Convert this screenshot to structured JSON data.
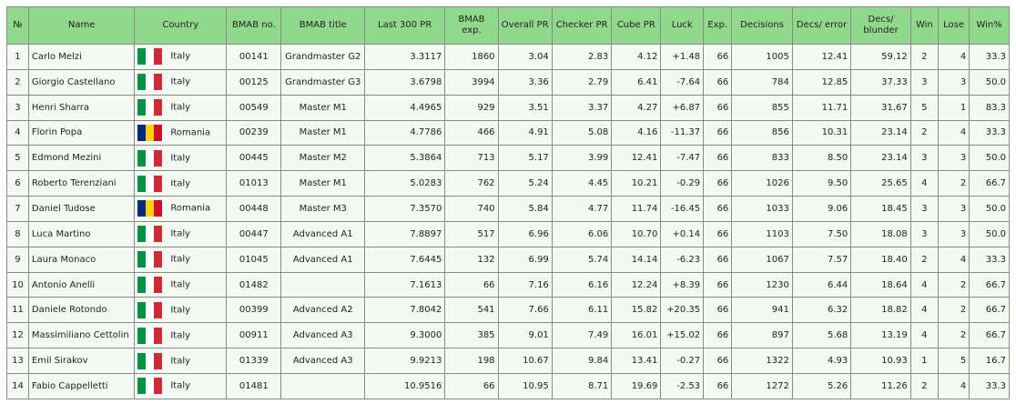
{
  "table": {
    "columns": [
      "№",
      "Name",
      "Country",
      "BMAB no.",
      "BMAB title",
      "Last 300 PR",
      "BMAB exp.",
      "Overall PR",
      "Checker PR",
      "Cube PR",
      "Luck",
      "Exp.",
      "Decisions",
      "Decs/ error",
      "Decs/ blunder",
      "Win",
      "Lose",
      "Win%"
    ],
    "flag_colors": {
      "Italy": [
        "#009246",
        "#ffffff",
        "#ce2b37"
      ],
      "Romania": [
        "#002b7f",
        "#fcd116",
        "#ce1126"
      ]
    },
    "rows": [
      {
        "n": "1",
        "name": "Carlo Melzi",
        "flag": "italy-flag-icon",
        "country": "Italy",
        "bmab_no": "00141",
        "title": "Grandmaster G2",
        "last300": "3.3117",
        "bmab_exp": "1860",
        "overall": "3.04",
        "checker": "2.83",
        "cube": "4.12",
        "luck": "+1.48",
        "exp": "66",
        "decisions": "1005",
        "decs_error": "12.41",
        "decs_blunder": "59.12",
        "win": "2",
        "lose": "4",
        "winpct": "33.3"
      },
      {
        "n": "2",
        "name": "Giorgio Castellano",
        "flag": "italy-flag-icon",
        "country": "Italy",
        "bmab_no": "00125",
        "title": "Grandmaster G3",
        "last300": "3.6798",
        "bmab_exp": "3994",
        "overall": "3.36",
        "checker": "2.79",
        "cube": "6.41",
        "luck": "-7.64",
        "exp": "66",
        "decisions": "784",
        "decs_error": "12.85",
        "decs_blunder": "37.33",
        "win": "3",
        "lose": "3",
        "winpct": "50.0"
      },
      {
        "n": "3",
        "name": "Henri Sharra",
        "flag": "italy-flag-icon",
        "country": "Italy",
        "bmab_no": "00549",
        "title": "Master M1",
        "last300": "4.4965",
        "bmab_exp": "929",
        "overall": "3.51",
        "checker": "3.37",
        "cube": "4.27",
        "luck": "+6.87",
        "exp": "66",
        "decisions": "855",
        "decs_error": "11.71",
        "decs_blunder": "31.67",
        "win": "5",
        "lose": "1",
        "winpct": "83.3"
      },
      {
        "n": "4",
        "name": "Florin Popa",
        "flag": "romania-flag-icon",
        "country": "Romania",
        "bmab_no": "00239",
        "title": "Master M1",
        "last300": "4.7786",
        "bmab_exp": "466",
        "overall": "4.91",
        "checker": "5.08",
        "cube": "4.16",
        "luck": "-11.37",
        "exp": "66",
        "decisions": "856",
        "decs_error": "10.31",
        "decs_blunder": "23.14",
        "win": "2",
        "lose": "4",
        "winpct": "33.3"
      },
      {
        "n": "5",
        "name": "Edmond Mezini",
        "flag": "italy-flag-icon",
        "country": "Italy",
        "bmab_no": "00445",
        "title": "Master M2",
        "last300": "5.3864",
        "bmab_exp": "713",
        "overall": "5.17",
        "checker": "3.99",
        "cube": "12.41",
        "luck": "-7.47",
        "exp": "66",
        "decisions": "833",
        "decs_error": "8.50",
        "decs_blunder": "23.14",
        "win": "3",
        "lose": "3",
        "winpct": "50.0"
      },
      {
        "n": "6",
        "name": "Roberto Terenziani",
        "flag": "italy-flag-icon",
        "country": "Italy",
        "bmab_no": "01013",
        "title": "Master M1",
        "last300": "5.0283",
        "bmab_exp": "762",
        "overall": "5.24",
        "checker": "4.45",
        "cube": "10.21",
        "luck": "-0.29",
        "exp": "66",
        "decisions": "1026",
        "decs_error": "9.50",
        "decs_blunder": "25.65",
        "win": "4",
        "lose": "2",
        "winpct": "66.7"
      },
      {
        "n": "7",
        "name": "Daniel Tudose",
        "flag": "romania-flag-icon",
        "country": "Romania",
        "bmab_no": "00448",
        "title": "Master M3",
        "last300": "7.3570",
        "bmab_exp": "740",
        "overall": "5.84",
        "checker": "4.77",
        "cube": "11.74",
        "luck": "-16.45",
        "exp": "66",
        "decisions": "1033",
        "decs_error": "9.06",
        "decs_blunder": "18.45",
        "win": "3",
        "lose": "3",
        "winpct": "50.0"
      },
      {
        "n": "8",
        "name": "Luca Martino",
        "flag": "italy-flag-icon",
        "country": "Italy",
        "bmab_no": "00447",
        "title": "Advanced A1",
        "last300": "7.8897",
        "bmab_exp": "517",
        "overall": "6.96",
        "checker": "6.06",
        "cube": "10.70",
        "luck": "+0.14",
        "exp": "66",
        "decisions": "1103",
        "decs_error": "7.50",
        "decs_blunder": "18.08",
        "win": "3",
        "lose": "3",
        "winpct": "50.0"
      },
      {
        "n": "9",
        "name": "Laura Monaco",
        "flag": "italy-flag-icon",
        "country": "Italy",
        "bmab_no": "01045",
        "title": "Advanced A1",
        "last300": "7.6445",
        "bmab_exp": "132",
        "overall": "6.99",
        "checker": "5.74",
        "cube": "14.14",
        "luck": "-6.23",
        "exp": "66",
        "decisions": "1067",
        "decs_error": "7.57",
        "decs_blunder": "18.40",
        "win": "2",
        "lose": "4",
        "winpct": "33.3"
      },
      {
        "n": "10",
        "name": "Antonio Anelli",
        "flag": "italy-flag-icon",
        "country": "Italy",
        "bmab_no": "01482",
        "title": "",
        "last300": "7.1613",
        "bmab_exp": "66",
        "overall": "7.16",
        "checker": "6.16",
        "cube": "12.24",
        "luck": "+8.39",
        "exp": "66",
        "decisions": "1230",
        "decs_error": "6.44",
        "decs_blunder": "18.64",
        "win": "4",
        "lose": "2",
        "winpct": "66.7"
      },
      {
        "n": "11",
        "name": "Daniele Rotondo",
        "flag": "italy-flag-icon",
        "country": "Italy",
        "bmab_no": "00399",
        "title": "Advanced A2",
        "last300": "7.8042",
        "bmab_exp": "541",
        "overall": "7.66",
        "checker": "6.11",
        "cube": "15.82",
        "luck": "+20.35",
        "exp": "66",
        "decisions": "941",
        "decs_error": "6.32",
        "decs_blunder": "18.82",
        "win": "4",
        "lose": "2",
        "winpct": "66.7"
      },
      {
        "n": "12",
        "name": "Massimiliano Cettolin",
        "flag": "italy-flag-icon",
        "country": "Italy",
        "bmab_no": "00911",
        "title": "Advanced A3",
        "last300": "9.3000",
        "bmab_exp": "385",
        "overall": "9.01",
        "checker": "7.49",
        "cube": "16.01",
        "luck": "+15.02",
        "exp": "66",
        "decisions": "897",
        "decs_error": "5.68",
        "decs_blunder": "13.19",
        "win": "4",
        "lose": "2",
        "winpct": "66.7"
      },
      {
        "n": "13",
        "name": "Emil Sirakov",
        "flag": "italy-flag-icon",
        "country": "Italy",
        "bmab_no": "01339",
        "title": "Advanced A3",
        "last300": "9.9213",
        "bmab_exp": "198",
        "overall": "10.67",
        "checker": "9.84",
        "cube": "13.41",
        "luck": "-0.27",
        "exp": "66",
        "decisions": "1322",
        "decs_error": "4.93",
        "decs_blunder": "10.93",
        "win": "1",
        "lose": "5",
        "winpct": "16.7"
      },
      {
        "n": "14",
        "name": "Fabio Cappelletti",
        "flag": "italy-flag-icon",
        "country": "Italy",
        "bmab_no": "01481",
        "title": "",
        "last300": "10.9516",
        "bmab_exp": "66",
        "overall": "10.95",
        "checker": "8.71",
        "cube": "19.69",
        "luck": "-2.53",
        "exp": "66",
        "decisions": "1272",
        "decs_error": "5.26",
        "decs_blunder": "11.26",
        "win": "2",
        "lose": "4",
        "winpct": "33.3"
      }
    ]
  }
}
